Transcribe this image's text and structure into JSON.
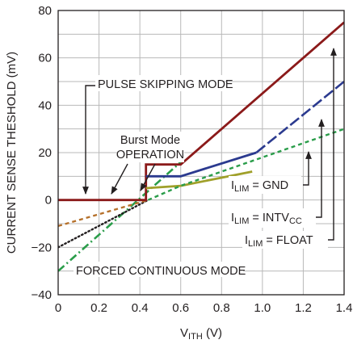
{
  "chart_data": {
    "type": "line",
    "title": "",
    "xlabel": {
      "main": "V",
      "sub": "ITH",
      "suffix": " (V)"
    },
    "ylabel": "CURRENT SENSE THESHOLD (mV)",
    "xlim": [
      0,
      1.4
    ],
    "ylim": [
      -40,
      80
    ],
    "xticks": [
      0,
      0.2,
      0.4,
      0.6,
      0.8,
      1.0,
      1.2,
      1.4
    ],
    "xtick_labels": [
      "0",
      "0.2",
      "0.4",
      "0.6",
      "0.8",
      "1.0",
      "1.2",
      "1.4"
    ],
    "yticks": [
      -40,
      -20,
      0,
      20,
      40,
      60,
      80
    ],
    "ytick_labels": [
      "−40",
      "−20",
      "0",
      "20",
      "40",
      "60",
      "80"
    ],
    "grid": true,
    "series": [
      {
        "color": "#2a9d4a",
        "style": "dashdot",
        "points": [
          [
            0,
            -30
          ],
          [
            0.6,
            16
          ]
        ]
      },
      {
        "color": "#231f20",
        "style": "dot",
        "points": [
          [
            0,
            -20
          ],
          [
            0.44,
            0
          ]
        ]
      },
      {
        "color": "#b5702a",
        "style": "dash",
        "points": [
          [
            0,
            -11
          ],
          [
            0.44,
            0
          ]
        ]
      },
      {
        "color": "#8b1a1a",
        "style": "solid",
        "points": [
          [
            0,
            0
          ],
          [
            0.43,
            0
          ],
          [
            0.43,
            15
          ],
          [
            0.6,
            15
          ],
          [
            1.4,
            75
          ]
        ]
      },
      {
        "color": "#2b3a8f",
        "style": "solid",
        "points": [
          [
            0.43,
            10
          ],
          [
            0.6,
            10
          ],
          [
            0.97,
            20
          ]
        ]
      },
      {
        "color": "#2b3a8f",
        "style": "longdash",
        "points": [
          [
            0.97,
            20
          ],
          [
            1.4,
            50
          ]
        ]
      },
      {
        "color": "#a0a02a",
        "style": "solid",
        "points": [
          [
            0.43,
            5
          ],
          [
            0.6,
            6
          ],
          [
            0.95,
            12
          ]
        ]
      },
      {
        "color": "#2a9d4a",
        "style": "dash",
        "points": [
          [
            0.44,
            0
          ],
          [
            0.6,
            6
          ],
          [
            1.4,
            30
          ]
        ]
      }
    ],
    "annotations": {
      "pulse": {
        "text": "PULSE SKIPPING MODE"
      },
      "burst_line1": {
        "text": "Burst Mode"
      },
      "burst_line2": {
        "text": "OPERATION"
      },
      "forced": {
        "text": "FORCED CONTINUOUS MODE"
      },
      "ilim_gnd": {
        "pre": "I",
        "sub": "LIM",
        "mid": " = GND",
        "sub2": ""
      },
      "ilim_intv": {
        "pre": "I",
        "sub": "LIM",
        "mid": " = INTV",
        "sub2": "CC"
      },
      "ilim_float": {
        "pre": "I",
        "sub": "LIM",
        "mid": " = FLOAT",
        "sub2": ""
      }
    }
  }
}
